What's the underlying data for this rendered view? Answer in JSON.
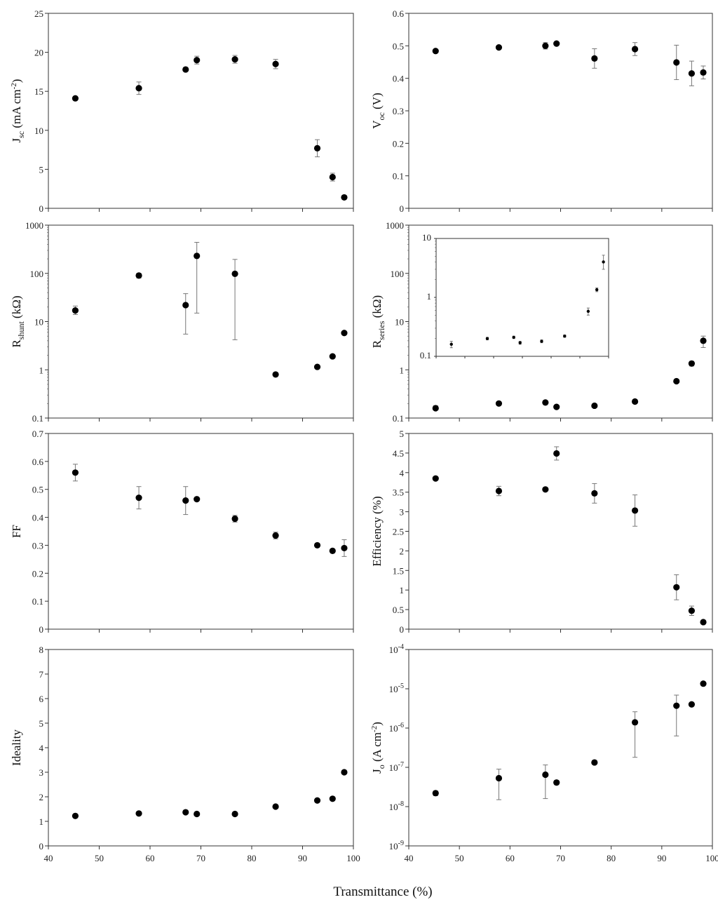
{
  "figure": {
    "xlabel": "Transmittance (%)"
  },
  "chart_data": [
    {
      "id": "jsc",
      "type": "scatter",
      "ylabel": "J_sc (mA cm^-2)",
      "yscale": "linear",
      "ylim": [
        0,
        25
      ],
      "yticks": [
        0,
        5,
        10,
        15,
        20,
        25
      ],
      "xlim": [
        40,
        100
      ],
      "points": [
        {
          "x": 45.3,
          "y": 14.1,
          "err": 0
        },
        {
          "x": 57.8,
          "y": 15.4,
          "err": 0.8
        },
        {
          "x": 67.0,
          "y": 17.8,
          "err": 0
        },
        {
          "x": 69.2,
          "y": 19.0,
          "err": 0.5
        },
        {
          "x": 76.7,
          "y": 19.1,
          "err": 0.5
        },
        {
          "x": 84.7,
          "y": 18.5,
          "err": 0.6
        },
        {
          "x": 92.9,
          "y": 7.7,
          "err": 1.1
        },
        {
          "x": 95.9,
          "y": 4.0,
          "err": 0.5
        },
        {
          "x": 98.2,
          "y": 1.4,
          "err": 0
        }
      ]
    },
    {
      "id": "voc",
      "type": "scatter",
      "ylabel": "V_oc (V)",
      "yscale": "linear",
      "ylim": [
        0,
        0.6
      ],
      "yticks": [
        0,
        0.1,
        0.2,
        0.3,
        0.4,
        0.5,
        0.6
      ],
      "xlim": [
        40,
        100
      ],
      "points": [
        {
          "x": 45.3,
          "y": 0.484,
          "err": 0
        },
        {
          "x": 57.8,
          "y": 0.495,
          "err": 0
        },
        {
          "x": 67.0,
          "y": 0.5,
          "err": 0.01
        },
        {
          "x": 69.2,
          "y": 0.507,
          "err": 0
        },
        {
          "x": 76.7,
          "y": 0.461,
          "err": 0.03
        },
        {
          "x": 84.7,
          "y": 0.49,
          "err": 0.02
        },
        {
          "x": 92.9,
          "y": 0.449,
          "err": 0.053
        },
        {
          "x": 95.9,
          "y": 0.415,
          "err": 0.038
        },
        {
          "x": 98.2,
          "y": 0.418,
          "err": 0.02
        }
      ]
    },
    {
      "id": "rshunt",
      "type": "scatter",
      "ylabel": "R_shunt (kΩ)",
      "yscale": "log",
      "ylim": [
        0.1,
        1000
      ],
      "yticks": [
        0.1,
        1,
        10,
        100,
        1000
      ],
      "xlim": [
        40,
        100
      ],
      "points": [
        {
          "x": 45.3,
          "y": 17,
          "lo": 14,
          "hi": 21
        },
        {
          "x": 57.8,
          "y": 90,
          "lo": 80,
          "hi": 100
        },
        {
          "x": 67.0,
          "y": 22,
          "lo": 5.5,
          "hi": 38
        },
        {
          "x": 69.2,
          "y": 230,
          "lo": 15,
          "hi": 440
        },
        {
          "x": 76.7,
          "y": 98,
          "lo": 4.2,
          "hi": 195
        },
        {
          "x": 84.7,
          "y": 0.8,
          "lo": 0.8,
          "hi": 0.8
        },
        {
          "x": 92.9,
          "y": 1.15,
          "lo": 1.15,
          "hi": 1.15
        },
        {
          "x": 95.9,
          "y": 1.9,
          "lo": 1.9,
          "hi": 1.9
        },
        {
          "x": 98.2,
          "y": 5.8,
          "lo": 5.8,
          "hi": 5.8
        }
      ]
    },
    {
      "id": "rseries",
      "type": "scatter",
      "ylabel": "R_series (kΩ)",
      "yscale": "log",
      "ylim": [
        0.1,
        1000
      ],
      "yticks": [
        0.1,
        1,
        10,
        100,
        1000
      ],
      "xlim": [
        40,
        100
      ],
      "points": [
        {
          "x": 45.3,
          "y": 0.16,
          "lo": 0.15,
          "hi": 0.18
        },
        {
          "x": 57.8,
          "y": 0.2,
          "lo": 0.2,
          "hi": 0.2
        },
        {
          "x": 67.0,
          "y": 0.21,
          "lo": 0.2,
          "hi": 0.22
        },
        {
          "x": 69.2,
          "y": 0.17,
          "lo": 0.17,
          "hi": 0.17
        },
        {
          "x": 76.7,
          "y": 0.18,
          "lo": 0.18,
          "hi": 0.18
        },
        {
          "x": 84.7,
          "y": 0.22,
          "lo": 0.22,
          "hi": 0.22
        },
        {
          "x": 92.9,
          "y": 0.58,
          "lo": 0.58,
          "hi": 0.58
        },
        {
          "x": 95.9,
          "y": 1.35,
          "lo": 1.2,
          "hi": 1.5
        },
        {
          "x": 98.2,
          "y": 4.0,
          "lo": 2.9,
          "hi": 5.0
        }
      ],
      "inset": {
        "yscale": "log",
        "ylim": [
          0.1,
          10
        ],
        "yticks": [
          0.1,
          1,
          10
        ],
        "xlim": [
          40,
          100
        ],
        "points": [
          {
            "x": 45.3,
            "y": 0.16,
            "lo": 0.14,
            "hi": 0.18
          },
          {
            "x": 57.8,
            "y": 0.2,
            "lo": 0.19,
            "hi": 0.21
          },
          {
            "x": 67.0,
            "y": 0.21,
            "lo": 0.2,
            "hi": 0.22
          },
          {
            "x": 69.2,
            "y": 0.17,
            "lo": 0.16,
            "hi": 0.18
          },
          {
            "x": 76.7,
            "y": 0.18,
            "lo": 0.17,
            "hi": 0.19
          },
          {
            "x": 84.7,
            "y": 0.22,
            "lo": 0.21,
            "hi": 0.23
          },
          {
            "x": 92.9,
            "y": 0.58,
            "lo": 0.5,
            "hi": 0.66
          },
          {
            "x": 95.9,
            "y": 1.35,
            "lo": 1.25,
            "hi": 1.45
          },
          {
            "x": 98.2,
            "y": 4.0,
            "lo": 3.0,
            "hi": 5.2
          }
        ]
      }
    },
    {
      "id": "ff",
      "type": "scatter",
      "ylabel": "FF",
      "yscale": "linear",
      "ylim": [
        0,
        0.7
      ],
      "yticks": [
        0,
        0.1,
        0.2,
        0.3,
        0.4,
        0.5,
        0.6,
        0.7
      ],
      "xlim": [
        40,
        100
      ],
      "points": [
        {
          "x": 45.3,
          "y": 0.56,
          "err": 0.03
        },
        {
          "x": 57.8,
          "y": 0.47,
          "err": 0.04
        },
        {
          "x": 67.0,
          "y": 0.46,
          "err": 0.05
        },
        {
          "x": 69.2,
          "y": 0.465,
          "err": 0
        },
        {
          "x": 76.7,
          "y": 0.395,
          "err": 0.012
        },
        {
          "x": 84.7,
          "y": 0.335,
          "err": 0.012
        },
        {
          "x": 92.9,
          "y": 0.3,
          "err": 0
        },
        {
          "x": 95.9,
          "y": 0.28,
          "err": 0
        },
        {
          "x": 98.2,
          "y": 0.29,
          "err": 0.03
        }
      ]
    },
    {
      "id": "efficiency",
      "type": "scatter",
      "ylabel": "Efficiency (%)",
      "yscale": "linear",
      "ylim": [
        0,
        5
      ],
      "yticks": [
        0,
        0.5,
        1,
        1.5,
        2,
        2.5,
        3,
        3.5,
        4,
        4.5,
        5
      ],
      "xlim": [
        40,
        100
      ],
      "points": [
        {
          "x": 45.3,
          "y": 3.85,
          "err": 0
        },
        {
          "x": 57.8,
          "y": 3.53,
          "err": 0.12
        },
        {
          "x": 67.0,
          "y": 3.57,
          "err": 0
        },
        {
          "x": 69.2,
          "y": 4.49,
          "err": 0.17
        },
        {
          "x": 76.7,
          "y": 3.47,
          "err": 0.25
        },
        {
          "x": 84.7,
          "y": 3.03,
          "err": 0.4
        },
        {
          "x": 92.9,
          "y": 1.07,
          "err": 0.32
        },
        {
          "x": 95.9,
          "y": 0.47,
          "err": 0.12
        },
        {
          "x": 98.2,
          "y": 0.18,
          "err": 0
        }
      ]
    },
    {
      "id": "ideality",
      "type": "scatter",
      "ylabel": "Ideality",
      "yscale": "linear",
      "ylim": [
        0,
        8
      ],
      "yticks": [
        0,
        1,
        2,
        3,
        4,
        5,
        6,
        7,
        8
      ],
      "xlim": [
        40,
        100
      ],
      "xticks": [
        40,
        50,
        60,
        70,
        80,
        90,
        100
      ],
      "points": [
        {
          "x": 45.3,
          "y": 1.22,
          "err": 0
        },
        {
          "x": 57.8,
          "y": 1.32,
          "err": 0
        },
        {
          "x": 67.0,
          "y": 1.37,
          "err": 0
        },
        {
          "x": 69.2,
          "y": 1.3,
          "err": 0
        },
        {
          "x": 76.7,
          "y": 1.3,
          "err": 0
        },
        {
          "x": 84.7,
          "y": 1.6,
          "err": 0
        },
        {
          "x": 92.9,
          "y": 1.85,
          "err": 0
        },
        {
          "x": 95.9,
          "y": 1.92,
          "err": 0
        },
        {
          "x": 98.2,
          "y": 3.0,
          "err": 0
        }
      ]
    },
    {
      "id": "jo",
      "type": "scatter",
      "ylabel": "J_o (A cm^-2)",
      "yscale": "log",
      "ylim": [
        1e-09,
        0.0001
      ],
      "yticks": [
        1e-09,
        1e-08,
        1e-07,
        1e-06,
        1e-05,
        0.0001
      ],
      "xlim": [
        40,
        100
      ],
      "xticks": [
        40,
        50,
        60,
        70,
        80,
        90,
        100
      ],
      "points": [
        {
          "x": 45.3,
          "y": 2.2e-08,
          "lo": 1.9e-08,
          "hi": 2.5e-08
        },
        {
          "x": 57.8,
          "y": 5.3e-08,
          "lo": 1.5e-08,
          "hi": 9e-08
        },
        {
          "x": 67.0,
          "y": 6.5e-08,
          "lo": 1.6e-08,
          "hi": 1.15e-07
        },
        {
          "x": 69.2,
          "y": 4.1e-08,
          "lo": 3.6e-08,
          "hi": 4.6e-08
        },
        {
          "x": 76.7,
          "y": 1.33e-07,
          "lo": 1.25e-07,
          "hi": 1.4e-07
        },
        {
          "x": 84.7,
          "y": 1.4e-06,
          "lo": 1.8e-07,
          "hi": 2.6e-06
        },
        {
          "x": 92.9,
          "y": 3.7e-06,
          "lo": 6.3e-07,
          "hi": 6.9e-06
        },
        {
          "x": 95.9,
          "y": 4e-06,
          "lo": 3.8e-06,
          "hi": 4.2e-06
        },
        {
          "x": 98.2,
          "y": 1.35e-05,
          "lo": 1.3e-05,
          "hi": 1.4e-05
        }
      ]
    }
  ]
}
